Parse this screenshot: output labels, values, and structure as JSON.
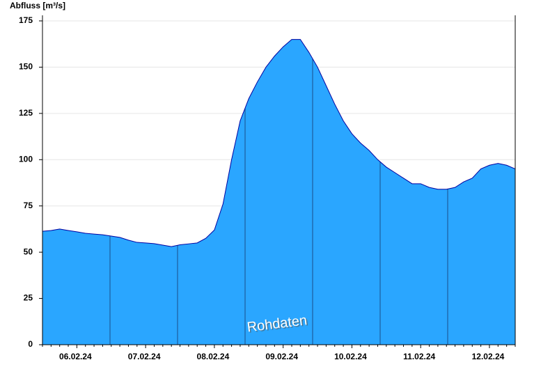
{
  "chart_data": {
    "type": "area",
    "y_label": "Abfluss [m³/s]",
    "annotation": "Rohdaten",
    "color": "#2aa6ff",
    "line_color": "#0000a0",
    "grid": true,
    "ylim": [
      0,
      175
    ],
    "yticks": [
      0,
      25,
      50,
      75,
      100,
      125,
      150,
      175
    ],
    "categories": [
      null,
      null,
      null,
      null,
      "06.02.24",
      null,
      null,
      null,
      null,
      null,
      null,
      null,
      "07.02.24",
      null,
      null,
      null,
      null,
      null,
      null,
      null,
      "08.02.24",
      null,
      null,
      null,
      null,
      null,
      null,
      null,
      "09.02.24",
      null,
      null,
      null,
      null,
      null,
      null,
      null,
      "10.02.24",
      null,
      null,
      null,
      null,
      null,
      null,
      null,
      "11.02.24",
      null,
      null,
      null,
      null,
      null,
      null,
      null,
      "12.02.24",
      null,
      null,
      null
    ],
    "values": [
      61.3,
      61.7,
      62.5,
      61.7,
      61,
      60.2,
      59.8,
      59.4,
      58.7,
      58,
      56.5,
      55.3,
      55,
      54.6,
      53.8,
      53,
      54,
      54.5,
      55,
      57.5,
      62,
      76,
      100,
      121,
      133,
      142,
      150,
      156,
      161,
      165,
      165,
      158,
      150,
      140,
      130,
      121,
      114,
      109,
      105,
      100,
      96,
      93,
      90,
      87,
      87,
      85,
      84,
      84,
      85,
      88,
      90,
      95,
      97,
      98,
      97,
      95
    ]
  }
}
